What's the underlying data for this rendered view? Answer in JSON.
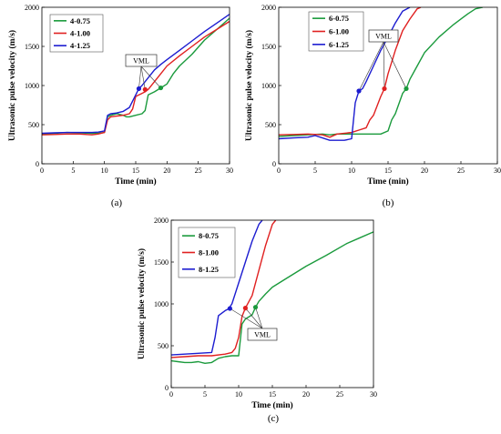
{
  "chart_data": [
    {
      "type": "line",
      "panel_label": "(a)",
      "xlabel": "Time (min)",
      "ylabel": "Ultrasonic pulse velocity (m/s)",
      "xlim": [
        0,
        30
      ],
      "ylim": [
        0,
        2000
      ],
      "xticks": [
        0,
        5,
        10,
        15,
        20,
        25,
        30
      ],
      "yticks": [
        0,
        500,
        1000,
        1500,
        2000
      ],
      "legend_position": "top-left",
      "annotation": {
        "text": "VML",
        "at": [
          15.5,
          1150
        ]
      },
      "series": [
        {
          "name": "4-0.75",
          "color": "#1a9a3c",
          "x": [
            0,
            2,
            4,
            6,
            8,
            9,
            10,
            10.5,
            11,
            12,
            13,
            13.5,
            14,
            15,
            16,
            16.5,
            17,
            18,
            19,
            20,
            21,
            22,
            24,
            26,
            28,
            30
          ],
          "y": [
            380,
            390,
            400,
            395,
            390,
            390,
            400,
            600,
            620,
            640,
            620,
            600,
            600,
            620,
            640,
            680,
            880,
            920,
            970,
            1020,
            1150,
            1250,
            1400,
            1580,
            1720,
            1860
          ]
        },
        {
          "name": "4-1.00",
          "color": "#e02020",
          "x": [
            0,
            2,
            4,
            6,
            8,
            9,
            10,
            10.5,
            11,
            12,
            13,
            14,
            14.5,
            15,
            16,
            16.5,
            17,
            18,
            19,
            20,
            22,
            24,
            26,
            28,
            30
          ],
          "y": [
            370,
            375,
            380,
            380,
            370,
            380,
            400,
            560,
            600,
            610,
            620,
            640,
            700,
            860,
            900,
            920,
            950,
            1050,
            1150,
            1250,
            1380,
            1500,
            1620,
            1720,
            1820
          ]
        },
        {
          "name": "4-1.25",
          "color": "#1c1cd0",
          "x": [
            0,
            2,
            4,
            6,
            8,
            9,
            10,
            10.5,
            11,
            12,
            13,
            14,
            15,
            15.5,
            16,
            17,
            18,
            19,
            20,
            22,
            24,
            26,
            28,
            30
          ],
          "y": [
            390,
            395,
            400,
            400,
            400,
            405,
            420,
            620,
            640,
            650,
            670,
            720,
            880,
            960,
            1000,
            1100,
            1200,
            1270,
            1330,
            1450,
            1570,
            1690,
            1800,
            1910
          ]
        }
      ],
      "markers": [
        {
          "series": "4-0.75",
          "x": 19,
          "y": 970
        },
        {
          "series": "4-1.00",
          "x": 16.5,
          "y": 950
        },
        {
          "series": "4-1.25",
          "x": 15.5,
          "y": 960
        }
      ]
    },
    {
      "type": "line",
      "panel_label": "(b)",
      "xlabel": "Time (min)",
      "ylabel": "Ultrasonic pulse velocity (m/s)",
      "xlim": [
        0,
        30
      ],
      "ylim": [
        0,
        2000
      ],
      "xticks": [
        0,
        5,
        10,
        15,
        20,
        25,
        30
      ],
      "yticks": [
        0,
        500,
        1000,
        1500,
        2000
      ],
      "legend_position": "top-left",
      "annotation": {
        "text": "VML",
        "at": [
          12.5,
          1600
        ]
      },
      "series": [
        {
          "name": "6-0.75",
          "color": "#1a9a3c",
          "x": [
            0,
            2,
            4,
            6,
            7,
            8,
            10,
            12,
            14,
            15,
            15.5,
            16,
            17,
            17.5,
            18,
            19,
            20,
            22,
            24,
            26,
            27,
            28
          ],
          "y": [
            350,
            360,
            370,
            380,
            370,
            380,
            380,
            380,
            380,
            420,
            560,
            640,
            900,
            960,
            1080,
            1250,
            1420,
            1620,
            1780,
            1920,
            1980,
            2000
          ]
        },
        {
          "name": "6-1.00",
          "color": "#e02020",
          "x": [
            0,
            2,
            4,
            6,
            7,
            8,
            10,
            11,
            12,
            12.5,
            13,
            14,
            14.5,
            15,
            16,
            17,
            18,
            19,
            19.5
          ],
          "y": [
            370,
            375,
            380,
            370,
            340,
            380,
            400,
            430,
            460,
            560,
            620,
            860,
            960,
            1150,
            1450,
            1700,
            1850,
            1980,
            2000
          ]
        },
        {
          "name": "6-1.25",
          "color": "#1c1cd0",
          "x": [
            0,
            2,
            4,
            5,
            6,
            7,
            9,
            10,
            10.5,
            11,
            11.5,
            12,
            13,
            14,
            15,
            16,
            17,
            18
          ],
          "y": [
            320,
            330,
            340,
            360,
            330,
            300,
            300,
            320,
            780,
            930,
            960,
            1050,
            1250,
            1450,
            1620,
            1800,
            1950,
            2000
          ]
        }
      ],
      "markers": [
        {
          "series": "6-0.75",
          "x": 17.5,
          "y": 960
        },
        {
          "series": "6-1.00",
          "x": 14.5,
          "y": 960
        },
        {
          "series": "6-1.25",
          "x": 11,
          "y": 930
        }
      ]
    },
    {
      "type": "line",
      "panel_label": "(c)",
      "xlabel": "Time (min)",
      "ylabel": "Ultrasonic pulse velocity (m/s)",
      "xlim": [
        0,
        30
      ],
      "ylim": [
        0,
        2000
      ],
      "xticks": [
        0,
        5,
        10,
        15,
        20,
        25,
        30
      ],
      "yticks": [
        0,
        500,
        1000,
        1500,
        2000
      ],
      "legend_position": "top-left",
      "annotation": {
        "text": "VML",
        "at": [
          13,
          380
        ]
      },
      "series": [
        {
          "name": "8-0.75",
          "color": "#1a9a3c",
          "x": [
            0,
            1,
            2,
            3,
            4,
            5,
            6,
            7,
            8,
            9,
            10,
            10.5,
            11,
            12,
            12.5,
            13,
            14,
            15,
            17,
            20,
            23,
            26,
            28,
            30
          ],
          "y": [
            320,
            310,
            300,
            300,
            310,
            290,
            300,
            350,
            370,
            380,
            380,
            760,
            820,
            870,
            960,
            1030,
            1120,
            1200,
            1300,
            1450,
            1580,
            1720,
            1790,
            1860
          ]
        },
        {
          "name": "8-1.00",
          "color": "#e02020",
          "x": [
            0,
            2,
            4,
            6,
            8,
            9,
            9.5,
            10,
            10.5,
            11,
            12,
            13,
            14,
            15,
            15.5
          ],
          "y": [
            360,
            370,
            380,
            380,
            400,
            420,
            470,
            600,
            850,
            950,
            1100,
            1400,
            1700,
            1950,
            2000
          ]
        },
        {
          "name": "8-1.25",
          "color": "#1c1cd0",
          "x": [
            0,
            2,
            4,
            6,
            6.5,
            7,
            8,
            8.5,
            9,
            10,
            11,
            12,
            13,
            13.5
          ],
          "y": [
            390,
            400,
            410,
            420,
            600,
            860,
            920,
            940,
            1000,
            1250,
            1500,
            1750,
            1950,
            2000
          ]
        }
      ],
      "markers": [
        {
          "series": "8-0.75",
          "x": 12.5,
          "y": 960
        },
        {
          "series": "8-1.00",
          "x": 11,
          "y": 950
        },
        {
          "series": "8-1.25",
          "x": 8.7,
          "y": 945
        }
      ]
    }
  ]
}
